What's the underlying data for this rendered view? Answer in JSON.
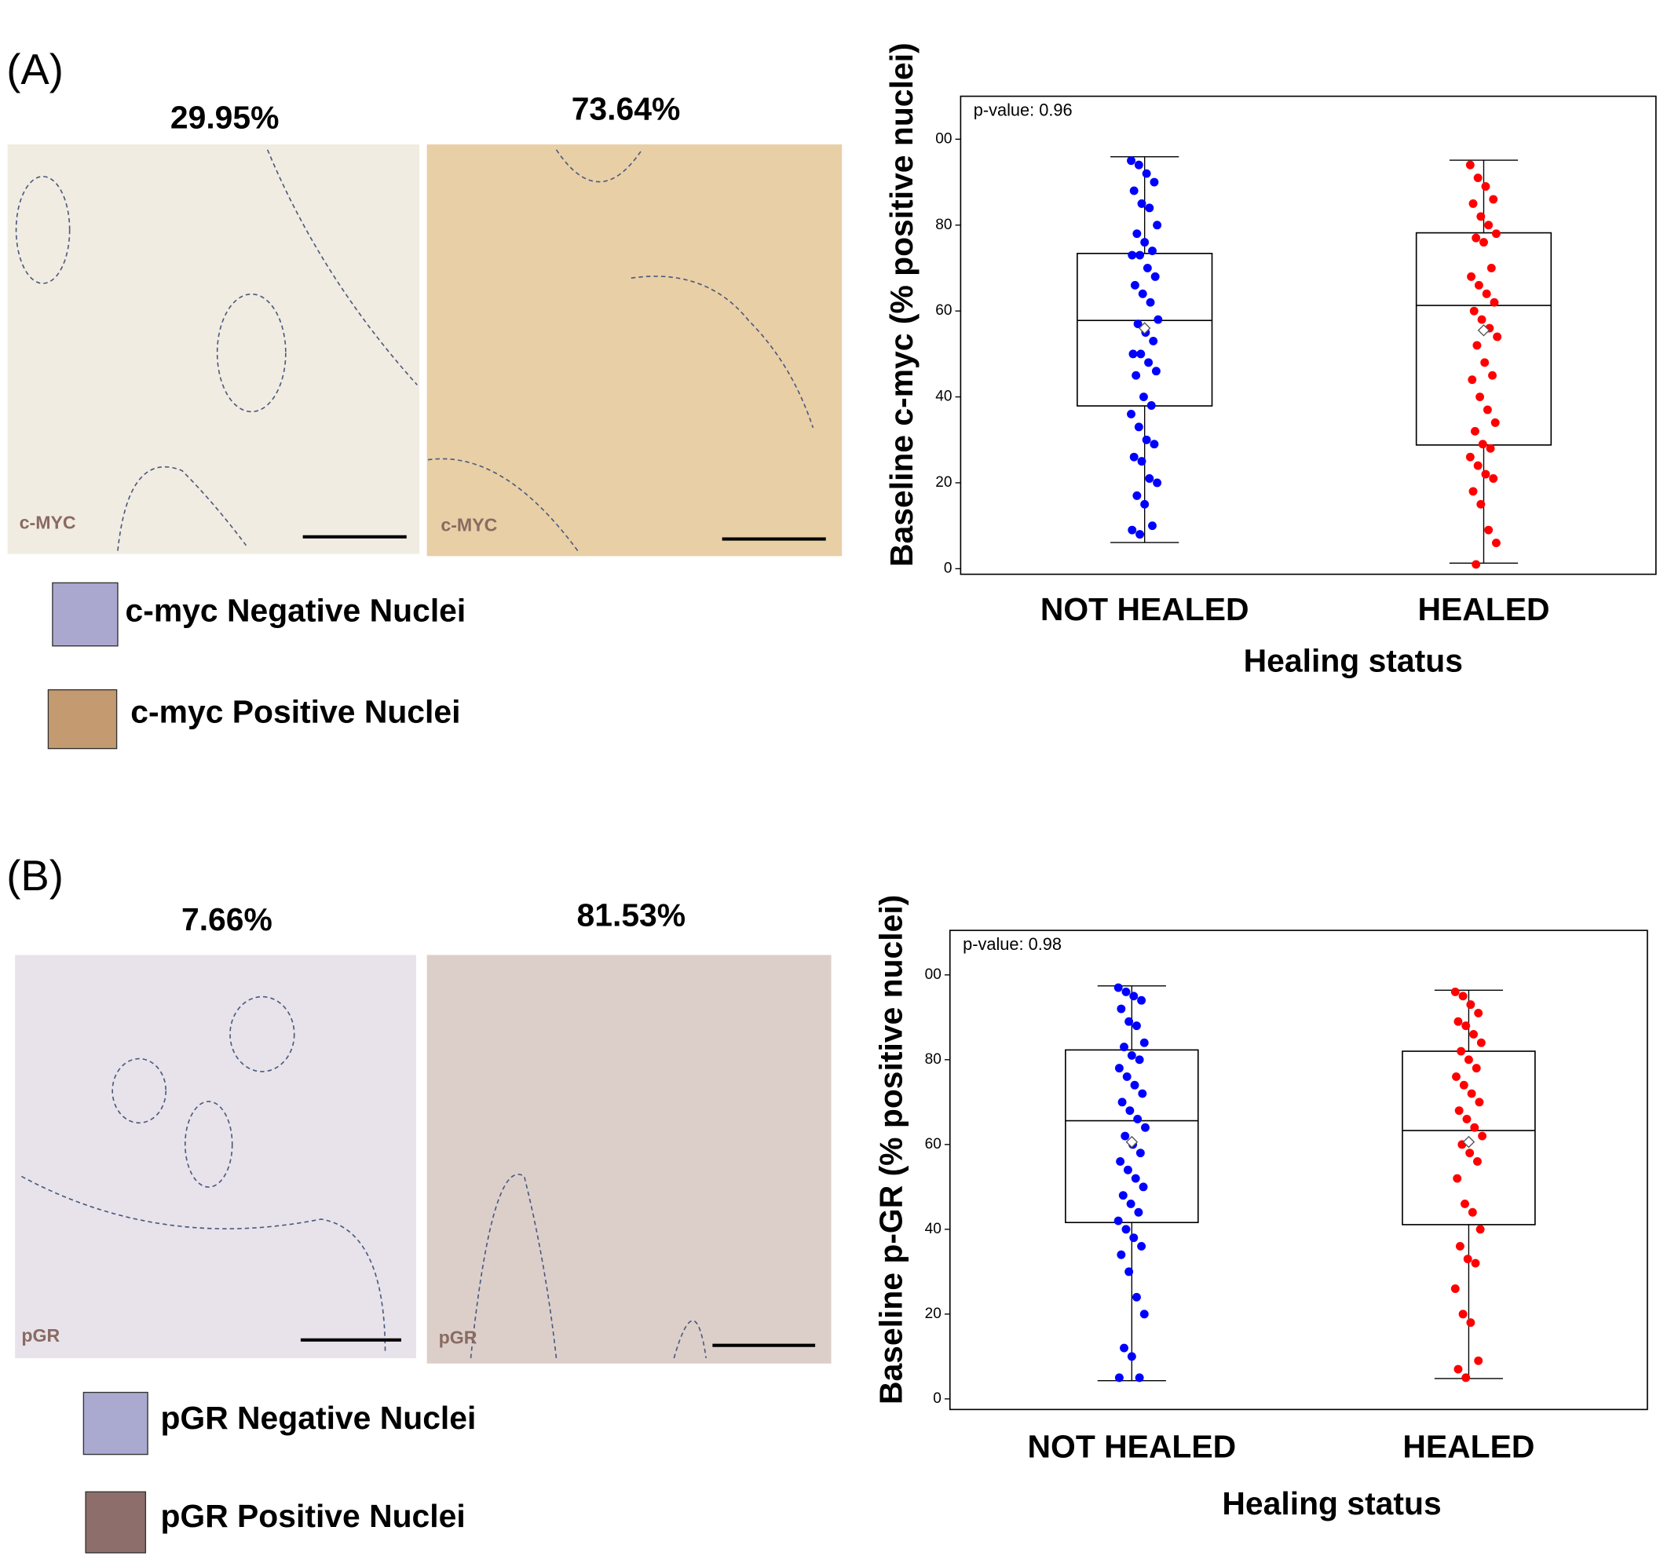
{
  "panels": [
    {
      "label": "(A)",
      "images": [
        {
          "percent": "29.95%",
          "stain": "c-MYC"
        },
        {
          "percent": "73.64%",
          "stain": "c-MYC"
        }
      ],
      "legend": [
        {
          "text": "c-myc Negative Nuclei",
          "color": "#aaa8cf"
        },
        {
          "text": "c-myc Positive Nuclei",
          "color": "#c49a70"
        }
      ]
    },
    {
      "label": "(B)",
      "images": [
        {
          "percent": "7.66%",
          "stain": "pGR"
        },
        {
          "percent": "81.53%",
          "stain": "pGR"
        }
      ],
      "legend": [
        {
          "text": "pGR Negative Nuclei",
          "color": "#aaa9d0"
        },
        {
          "text": "pGR Positive Nuclei",
          "color": "#8e6e6a"
        }
      ]
    }
  ],
  "chart_data": [
    {
      "type": "box",
      "ylabel": "Baseline c-myc (% positive nuclei)",
      "xlabel": "Healing status",
      "annotation": "p-value: 0.96",
      "categories": [
        "NOT HEALED",
        "HEALED"
      ],
      "colors": [
        "#0000ff",
        "#ff0000"
      ],
      "ylim": [
        -1.3,
        110
      ],
      "yticks": [
        0,
        20,
        40,
        60,
        80,
        {
          "value": 100,
          "label": "00"
        }
      ],
      "boxes": [
        {
          "min": 6.1,
          "q1": 37.9,
          "median": 57.8,
          "q3": 73.4,
          "max": 95.9,
          "mean": 56
        },
        {
          "min": 1.3,
          "q1": 28.8,
          "median": 61.3,
          "q3": 78.2,
          "max": 95.1,
          "mean": 55.5
        }
      ],
      "points": [
        [
          95,
          94,
          92,
          90,
          88,
          85,
          84,
          80,
          78,
          76,
          74,
          73,
          73,
          70,
          68,
          66,
          64,
          62,
          58,
          57,
          55,
          53,
          50,
          50,
          48,
          46,
          45,
          40,
          38,
          36,
          33,
          30,
          29,
          26,
          25,
          21,
          20,
          17,
          15,
          10,
          9,
          8
        ],
        [
          94,
          91,
          89,
          86,
          85,
          82,
          80,
          78,
          77,
          76,
          70,
          68,
          66,
          64,
          62,
          60,
          58,
          56,
          54,
          52,
          48,
          45,
          44,
          40,
          37,
          34,
          32,
          29,
          28,
          26,
          24,
          22,
          21,
          18,
          15,
          9,
          6,
          1
        ]
      ]
    },
    {
      "type": "box",
      "ylabel": "Baseline p-GR (% positive nuclei)",
      "xlabel": "Healing status",
      "annotation": "p-value: 0.98",
      "categories": [
        "NOT HEALED",
        "HEALED"
      ],
      "colors": [
        "#0000ff",
        "#ff0000"
      ],
      "ylim": [
        -2.5,
        110.5
      ],
      "yticks": [
        0,
        20,
        40,
        60,
        80,
        {
          "value": 100,
          "label": "00"
        }
      ],
      "boxes": [
        {
          "min": 4.3,
          "q1": 41.6,
          "median": 65.6,
          "q3": 82.3,
          "max": 97.4,
          "mean": 60.6
        },
        {
          "min": 4.8,
          "q1": 41.1,
          "median": 63.3,
          "q3": 82,
          "max": 96.4,
          "mean": 60.6
        }
      ],
      "points": [
        [
          97,
          96,
          95,
          94,
          92,
          89,
          88,
          84,
          83,
          81,
          80,
          78,
          76,
          74,
          72,
          70,
          68,
          66,
          64,
          62,
          60,
          58,
          56,
          54,
          52,
          50,
          48,
          46,
          44,
          42,
          40,
          38,
          36,
          34,
          30,
          24,
          20,
          12,
          10,
          5,
          5
        ],
        [
          96,
          95,
          93,
          91,
          89,
          88,
          86,
          84,
          82,
          80,
          78,
          76,
          74,
          72,
          70,
          68,
          66,
          64,
          62,
          60,
          58,
          56,
          52,
          46,
          44,
          40,
          36,
          33,
          32,
          26,
          20,
          18,
          9,
          7,
          5
        ]
      ]
    }
  ]
}
